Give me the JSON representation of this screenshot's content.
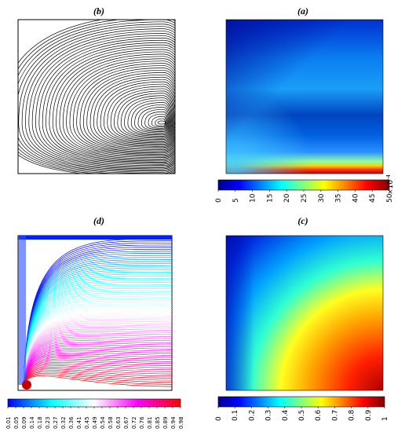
{
  "panels": {
    "b": {
      "label": "(b)",
      "kind": "streamlines"
    },
    "a": {
      "label": "(a)",
      "kind": "heatmap",
      "colorbar_ticks": [
        "0",
        "5",
        "10",
        "15",
        "20",
        "25",
        "30",
        "35",
        "40",
        "45",
        "50"
      ],
      "colorbar_multiplier": "×10",
      "colorbar_exponent": "-4"
    },
    "d": {
      "label": "(d)",
      "kind": "contour-lines",
      "colorbar_ticks": [
        "0.01",
        "0.05",
        "0.09",
        "0.14",
        "0.18",
        "0.23",
        "0.27",
        "0.32",
        "0.36",
        "0.41",
        "0.45",
        "0.49",
        "0.54",
        "0.58",
        "0.63",
        "0.67",
        "0.72",
        "0.76",
        "0.81",
        "0.85",
        "0.89",
        "0.94",
        "0.98"
      ]
    },
    "c": {
      "label": "(c)",
      "kind": "heatmap",
      "colorbar_ticks": [
        "0",
        "0.1",
        "0.2",
        "0.3",
        "0.4",
        "0.5",
        "0.6",
        "0.7",
        "0.8",
        "0.9",
        "1"
      ]
    }
  },
  "colors": {
    "jet": [
      "#00008f",
      "#0000ff",
      "#00ffff",
      "#ffff00",
      "#ff0000",
      "#800000"
    ],
    "cool_warm": [
      "#0000ff",
      "#00ffff",
      "#ffffff",
      "#ff00ff",
      "#ff0000"
    ]
  }
}
